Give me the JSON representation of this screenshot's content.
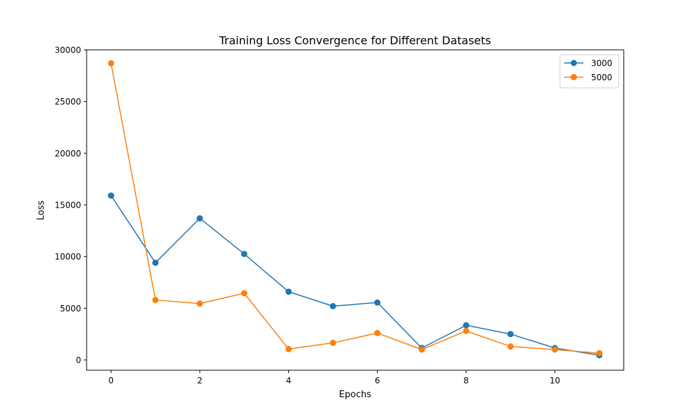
{
  "chart_data": {
    "type": "line",
    "title": "Training Loss Convergence for Different Datasets",
    "xlabel": "Epochs",
    "ylabel": "Loss",
    "x": [
      0,
      1,
      2,
      3,
      4,
      5,
      6,
      7,
      8,
      9,
      10,
      11
    ],
    "xlim": [
      -0.55,
      11.55
    ],
    "ylim": [
      -1000,
      30000
    ],
    "xticks": [
      0,
      2,
      4,
      6,
      8,
      10
    ],
    "yticks": [
      0,
      5000,
      10000,
      15000,
      20000,
      25000,
      30000
    ],
    "grid": false,
    "legend_position": "top-right",
    "series": [
      {
        "name": "3000",
        "color": "#1f77b4",
        "marker": "circle",
        "values": [
          15900,
          9400,
          13700,
          10250,
          6600,
          5200,
          5550,
          1150,
          3350,
          2500,
          1150,
          450
        ]
      },
      {
        "name": "5000",
        "color": "#ff7f0e",
        "marker": "circle",
        "values": [
          28700,
          5800,
          5450,
          6450,
          1050,
          1650,
          2600,
          1000,
          2800,
          1300,
          1000,
          650
        ]
      }
    ]
  }
}
